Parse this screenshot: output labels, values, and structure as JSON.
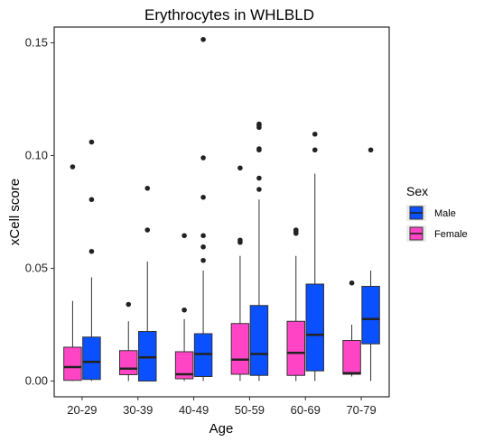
{
  "chart_data": {
    "type": "boxplot",
    "title": "Erythrocytes in WHLBLD",
    "xlabel": "Age",
    "ylabel": "xCell score",
    "ylim": [
      -0.007,
      0.157
    ],
    "yticks": [
      0.0,
      0.05,
      0.1,
      0.15
    ],
    "ytick_labels": [
      "0.00",
      "0.05",
      "0.10",
      "0.15"
    ],
    "categories": [
      "20-29",
      "30-39",
      "40-49",
      "50-59",
      "60-69",
      "70-79"
    ],
    "legend": {
      "title": "Sex",
      "placement": "right",
      "entries": [
        {
          "label": "Male",
          "color": "#0A50FF"
        },
        {
          "label": "Female",
          "color": "#FF45C5"
        }
      ]
    },
    "series": [
      {
        "name": "Female",
        "color": "#FF45C5",
        "boxes": [
          {
            "q1": 0.0003,
            "median": 0.0062,
            "q3": 0.015,
            "wlow": 0.0,
            "whigh": 0.0355,
            "outliers": [
              0.095
            ]
          },
          {
            "q1": 0.0028,
            "median": 0.0055,
            "q3": 0.0135,
            "wlow": 0.0,
            "whigh": 0.0265,
            "outliers": [
              0.034
            ]
          },
          {
            "q1": 0.001,
            "median": 0.003,
            "q3": 0.013,
            "wlow": 0.0,
            "whigh": 0.0275,
            "outliers": [
              0.0315,
              0.0645
            ]
          },
          {
            "q1": 0.003,
            "median": 0.0095,
            "q3": 0.0255,
            "wlow": 0.0,
            "whigh": 0.0555,
            "outliers": [
              0.0615,
              0.0625,
              0.0945
            ]
          },
          {
            "q1": 0.0025,
            "median": 0.0125,
            "q3": 0.0265,
            "wlow": 0.0,
            "whigh": 0.0555,
            "outliers": [
              0.0655,
              0.0665,
              0.067
            ]
          },
          {
            "q1": 0.003,
            "median": 0.0035,
            "q3": 0.018,
            "wlow": 0.002,
            "whigh": 0.025,
            "outliers": [
              0.0435
            ]
          }
        ]
      },
      {
        "name": "Male",
        "color": "#0A50FF",
        "boxes": [
          {
            "q1": 0.0007,
            "median": 0.0085,
            "q3": 0.0195,
            "wlow": 0.0,
            "whigh": 0.046,
            "outliers": [
              0.0575,
              0.0805,
              0.106
            ]
          },
          {
            "q1": 0.0,
            "median": 0.0105,
            "q3": 0.022,
            "wlow": 0.0,
            "whigh": 0.053,
            "outliers": [
              0.067,
              0.0855
            ]
          },
          {
            "q1": 0.002,
            "median": 0.012,
            "q3": 0.021,
            "wlow": 0.0,
            "whigh": 0.049,
            "outliers": [
              0.0535,
              0.0595,
              0.0645,
              0.0815,
              0.099,
              0.1515
            ]
          },
          {
            "q1": 0.0025,
            "median": 0.012,
            "q3": 0.0335,
            "wlow": 0.0,
            "whigh": 0.0805,
            "outliers": [
              0.085,
              0.09,
              0.1025,
              0.103,
              0.1125,
              0.1135,
              0.114
            ]
          },
          {
            "q1": 0.0045,
            "median": 0.0205,
            "q3": 0.043,
            "wlow": 0.0,
            "whigh": 0.092,
            "outliers": [
              0.1025,
              0.1095
            ]
          },
          {
            "q1": 0.0165,
            "median": 0.0275,
            "q3": 0.042,
            "wlow": 0.0,
            "whigh": 0.049,
            "outliers": [
              0.1025
            ]
          }
        ]
      }
    ]
  }
}
